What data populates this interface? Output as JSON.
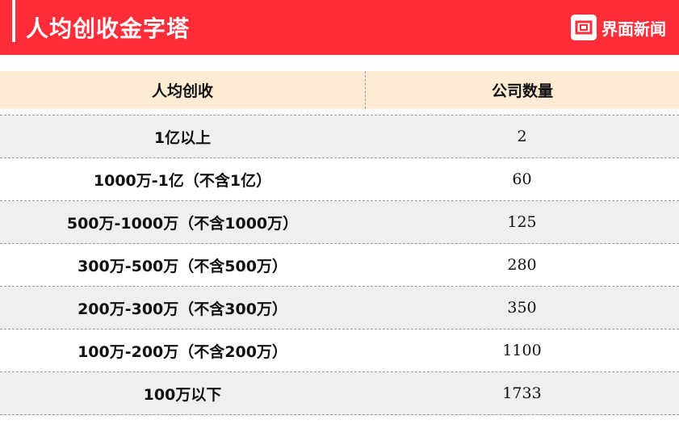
{
  "header": {
    "title": "人均创收金字塔",
    "brand": "界面新闻",
    "brand_color": "#ff2d3a"
  },
  "chart_data": {
    "type": "table",
    "title": "人均创收金字塔",
    "columns": [
      "人均创收",
      "公司数量"
    ],
    "rows": [
      [
        "1亿以上",
        "2"
      ],
      [
        "1000万-1亿（不含1亿）",
        "60"
      ],
      [
        "500万-1000万（不含1000万）",
        "125"
      ],
      [
        "300万-500万（不含500万）",
        "280"
      ],
      [
        "200万-300万（不含300万）",
        "350"
      ],
      [
        "100万-200万（不含200万）",
        "1100"
      ],
      [
        "100万以下",
        "1733"
      ]
    ]
  }
}
